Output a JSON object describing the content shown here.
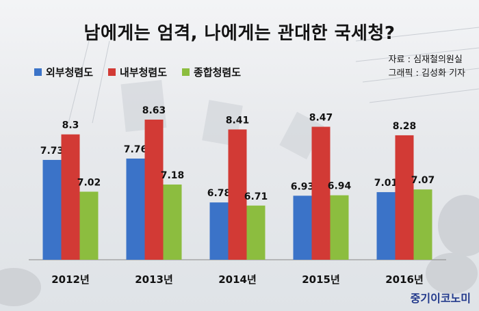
{
  "title": "남에게는 엄격, 나에게는 관대한 국세청?",
  "source": {
    "line1": "자료 : 심재철의원실",
    "line2": "그래픽 : 김성화 기자"
  },
  "brand": "중기이코노미",
  "colors": {
    "external": "#3b73c8",
    "internal": "#d23a35",
    "total": "#8cbd3f"
  },
  "chart_data": {
    "type": "bar",
    "title": "남에게는 엄격, 나에게는 관대한 국세청?",
    "categories": [
      "2012년",
      "2013년",
      "2014년",
      "2015년",
      "2016년"
    ],
    "series": [
      {
        "name": "외부청렴도",
        "values": [
          7.73,
          7.76,
          6.78,
          6.93,
          7.01
        ]
      },
      {
        "name": "내부청렴도",
        "values": [
          8.3,
          8.63,
          8.41,
          8.47,
          8.28
        ]
      },
      {
        "name": "종합청렴도",
        "values": [
          7.02,
          7.18,
          6.71,
          6.94,
          7.07
        ]
      }
    ],
    "data_labels": [
      [
        "7.73",
        "7.76",
        "6.78",
        "6.93",
        "7.01"
      ],
      [
        "8.3",
        "8.63",
        "8.41",
        "8.47",
        "8.28"
      ],
      [
        "7.02",
        "7.18",
        "6.71",
        "6.94",
        "7.07"
      ]
    ],
    "ylim": [
      5.5,
      9.0
    ],
    "grid": false,
    "legend": "top-left"
  }
}
